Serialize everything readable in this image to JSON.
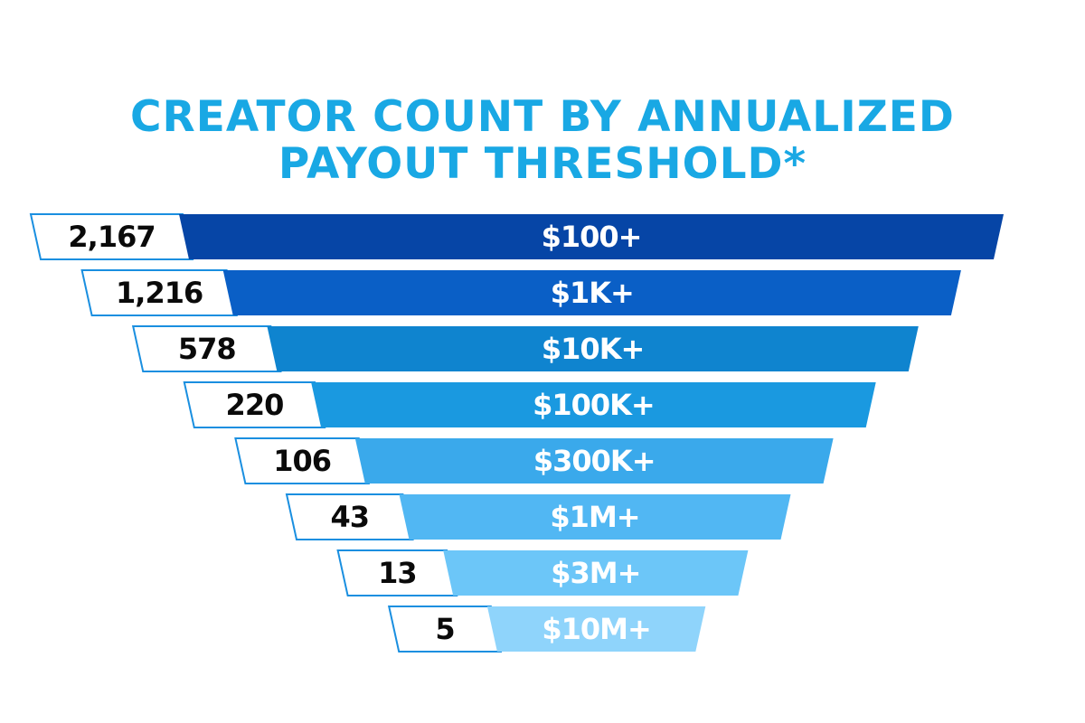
{
  "chart_data": {
    "type": "funnel",
    "title_lines": [
      "CREATOR COUNT BY ANNUALIZED",
      "PAYOUT THRESHOLD*"
    ],
    "categories": [
      "$100+",
      "$1K+",
      "$10K+",
      "$100K+",
      "$300K+",
      "$1M+",
      "$3M+",
      "$10M+"
    ],
    "values": [
      2167,
      1216,
      578,
      220,
      106,
      43,
      13,
      5
    ],
    "value_labels": [
      "2,167",
      "1,216",
      "578",
      "220",
      "106",
      "43",
      "13",
      "5"
    ],
    "colors": [
      "#0645a6",
      "#0a5fc6",
      "#0f84cf",
      "#1a99e0",
      "#3aa9eb",
      "#51b7f3",
      "#6cc6f8",
      "#8fd4fb"
    ],
    "count_box_border_color": "#1a8fe0"
  }
}
